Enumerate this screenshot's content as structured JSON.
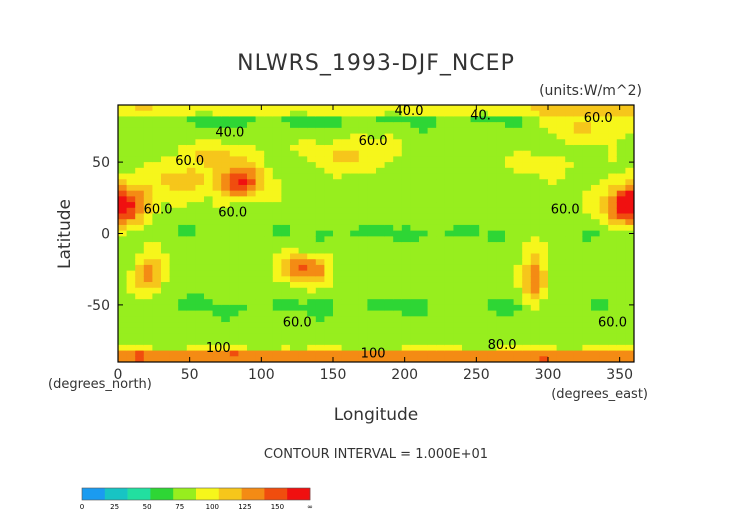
{
  "chart_data": {
    "type": "heatmap",
    "title": "NLWRS_1993-DJF_NCEP",
    "units_label": "(units:W/m^2)",
    "xlabel": "Longitude",
    "ylabel": "Latitude",
    "x_unit_label": "(degrees_east)",
    "y_unit_label": "(degrees_north)",
    "xlim": [
      0,
      360
    ],
    "ylim": [
      -90,
      90
    ],
    "x_ticks": [
      "0",
      "50",
      "100",
      "150",
      "200",
      "250",
      "300",
      "350"
    ],
    "x_tick_values": [
      0,
      50,
      100,
      150,
      200,
      250,
      300,
      350
    ],
    "y_ticks": [
      "50",
      "0",
      "-50"
    ],
    "y_tick_values": [
      50,
      0,
      -50
    ],
    "contour_interval_text": "CONTOUR INTERVAL = 1.000E+01",
    "contour_labels": [
      {
        "text": "40.0",
        "lon": 203,
        "lat": 83
      },
      {
        "text": "40.",
        "lon": 253,
        "lat": 80
      },
      {
        "text": "40.0",
        "lon": 78,
        "lat": 68
      },
      {
        "text": "60.0",
        "lon": 335,
        "lat": 78
      },
      {
        "text": "60.0",
        "lon": 178,
        "lat": 62
      },
      {
        "text": "60.0",
        "lon": 50,
        "lat": 48
      },
      {
        "text": "60.0",
        "lon": 28,
        "lat": 14
      },
      {
        "text": "60.0",
        "lon": 80,
        "lat": 12
      },
      {
        "text": "60.0",
        "lon": 312,
        "lat": 14
      },
      {
        "text": "60.0",
        "lon": 125,
        "lat": -65
      },
      {
        "text": "60.0",
        "lon": 345,
        "lat": -65
      },
      {
        "text": "100",
        "lon": 70,
        "lat": -83
      },
      {
        "text": "100",
        "lon": 178,
        "lat": -87
      },
      {
        "text": "80.0",
        "lon": 268,
        "lat": -81
      }
    ],
    "colorbar": {
      "ticks": [
        "0",
        "25",
        "50",
        "75",
        "100",
        "125",
        "150",
        "∞"
      ],
      "colors": [
        "#1a9bf0",
        "#17c4c4",
        "#22dfa0",
        "#2ed635",
        "#97ee1e",
        "#f6f61b",
        "#f6c61b",
        "#f48b14",
        "#f04d0e",
        "#f01010"
      ]
    }
  }
}
